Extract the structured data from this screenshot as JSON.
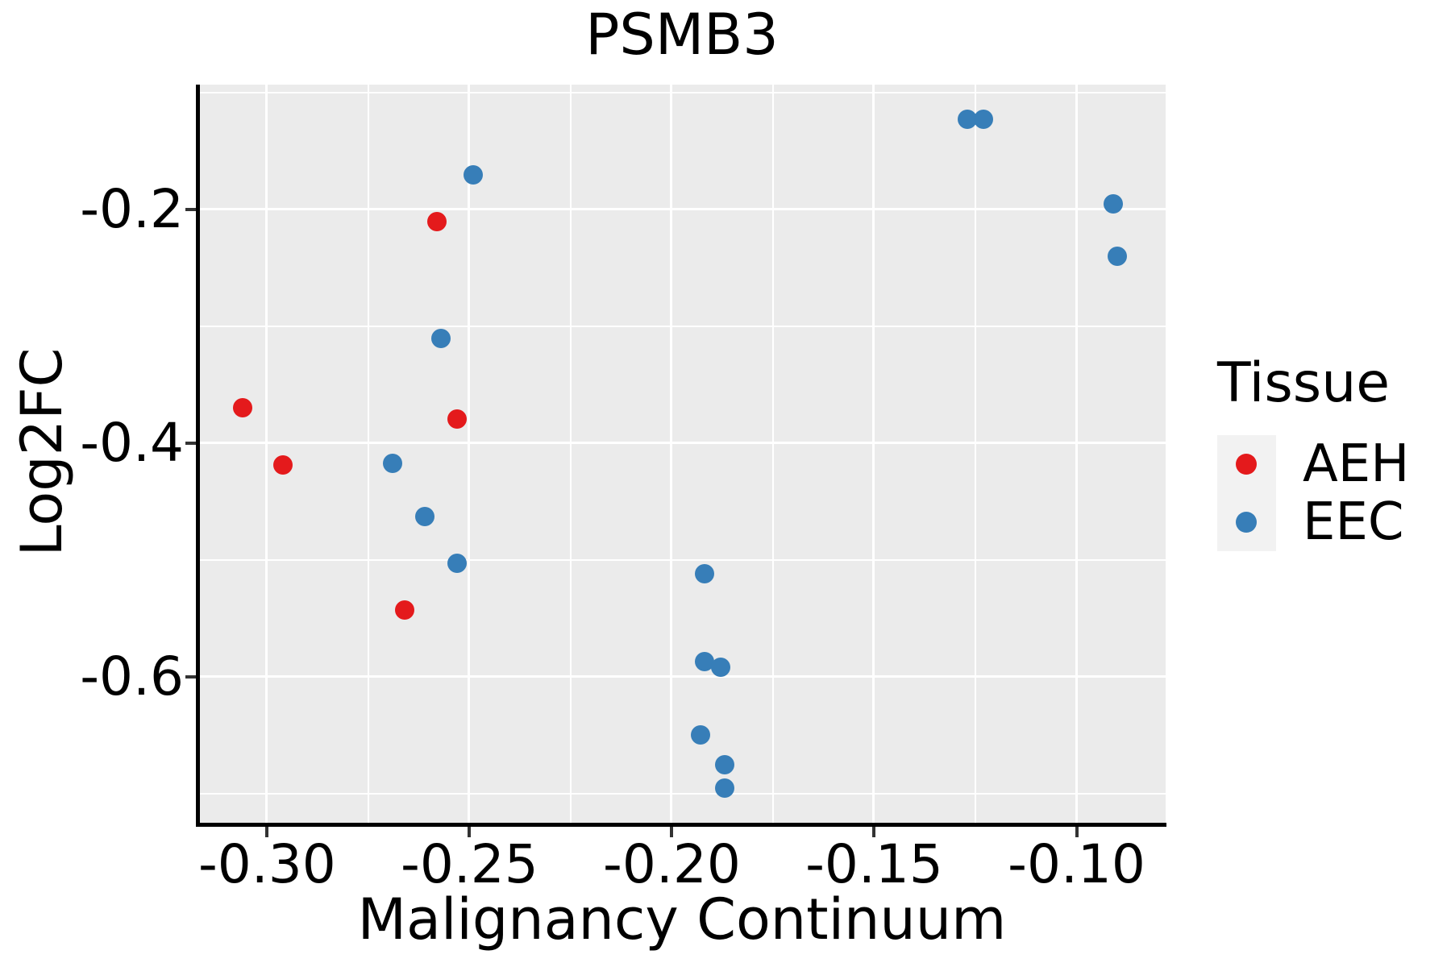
{
  "chart_data": {
    "type": "scatter",
    "title": "PSMB3",
    "xlabel": "Malignancy Continuum",
    "ylabel": "Log2FC",
    "xlim": [
      -0.317,
      -0.078
    ],
    "ylim": [
      -0.725,
      -0.093
    ],
    "x_ticks": [
      -0.3,
      -0.25,
      -0.2,
      -0.15,
      -0.1
    ],
    "x_tick_labels": [
      "-0.30",
      "-0.25",
      "-0.20",
      "-0.15",
      "-0.10"
    ],
    "y_ticks": [
      -0.6,
      -0.4,
      -0.2
    ],
    "y_tick_labels": [
      "-0.6",
      "-0.4",
      "-0.2"
    ],
    "grid": "major+minor white on gray panel",
    "legend": {
      "title": "Tissue",
      "position": "right",
      "entries": [
        {
          "label": "AEH",
          "color": "#E41A1C"
        },
        {
          "label": "EEC",
          "color": "#377EB8"
        }
      ]
    },
    "series": [
      {
        "name": "AEH",
        "color": "#E41A1C",
        "points": [
          [
            -0.306,
            -0.37
          ],
          [
            -0.296,
            -0.419
          ],
          [
            -0.258,
            -0.21
          ],
          [
            -0.253,
            -0.379
          ],
          [
            -0.266,
            -0.543
          ]
        ]
      },
      {
        "name": "EEC",
        "color": "#377EB8",
        "points": [
          [
            -0.249,
            -0.17
          ],
          [
            -0.257,
            -0.31
          ],
          [
            -0.269,
            -0.417
          ],
          [
            -0.261,
            -0.463
          ],
          [
            -0.253,
            -0.503
          ],
          [
            -0.192,
            -0.512
          ],
          [
            -0.192,
            -0.587
          ],
          [
            -0.188,
            -0.592
          ],
          [
            -0.193,
            -0.65
          ],
          [
            -0.187,
            -0.675
          ],
          [
            -0.187,
            -0.695
          ],
          [
            -0.127,
            -0.123
          ],
          [
            -0.123,
            -0.123
          ],
          [
            -0.091,
            -0.195
          ],
          [
            -0.09,
            -0.24
          ]
        ]
      }
    ]
  },
  "colors": {
    "panel_bg": "#EBEBEB",
    "gridline": "#FFFFFF",
    "spine": "#000000",
    "tick_mark": "#333333",
    "legend_key_bg": "#F2F2F2",
    "text": "#000000"
  }
}
